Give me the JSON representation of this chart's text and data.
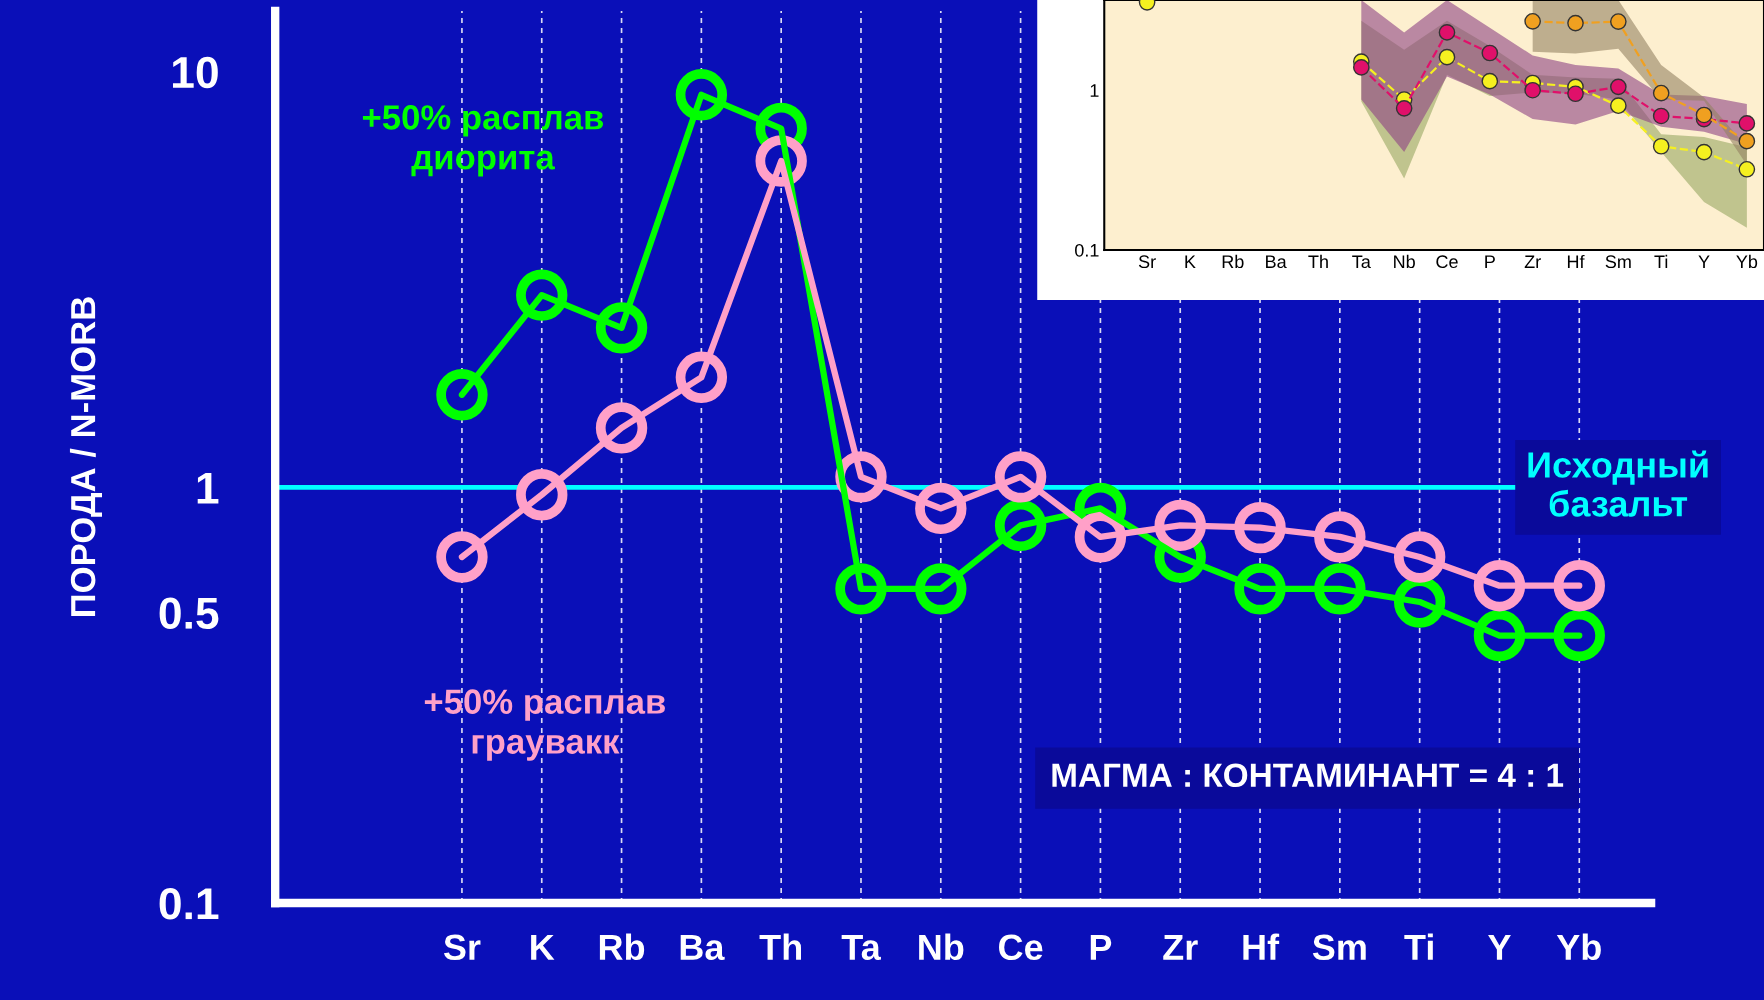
{
  "chart_data": [
    {
      "type": "line",
      "ylabel": "ПОРОДА / N-MORB",
      "categories": [
        "Sr",
        "K",
        "Rb",
        "Ba",
        "Th",
        "Ta",
        "Nb",
        "Ce",
        "P",
        "Zr",
        "Hf",
        "Sm",
        "Ti",
        "Y",
        "Yb"
      ],
      "series": [
        {
          "name": "+50% расплав диорита",
          "color": "#00ff00",
          "values": [
            1.67,
            2.9,
            2.42,
            8.8,
            7.3,
            0.57,
            0.57,
            0.81,
            0.89,
            0.68,
            0.57,
            0.57,
            0.53,
            0.44,
            0.44
          ]
        },
        {
          "name": "+50% расплав граувакк",
          "color": "#ffa0c8",
          "values": [
            0.68,
            0.96,
            1.39,
            1.84,
            6.1,
            1.06,
            0.89,
            1.06,
            0.76,
            0.81,
            0.8,
            0.76,
            0.68,
            0.58,
            0.58
          ]
        }
      ],
      "log": "y",
      "ylim": [
        0.1,
        14
      ],
      "yticks": [
        0.1,
        0.5,
        1,
        10
      ],
      "grid": "x",
      "marker": "circle",
      "line_style": "solid",
      "ref_lines": [
        {
          "axis": "y",
          "value": 1,
          "label": "Исходный базальт",
          "color": "#00ffff"
        }
      ],
      "annotations": [
        "МАГМА : КОНТАМИНАНТ = 4 : 1"
      ]
    },
    {
      "type": "line",
      "categories": [
        "Sr",
        "K",
        "Rb",
        "Ba",
        "Th",
        "Ta",
        "Nb",
        "Ce",
        "P",
        "Zr",
        "Hf",
        "Sm",
        "Ti",
        "Y",
        "Yb"
      ],
      "series": [
        {
          "color": "#f5f020",
          "values": [
            3.55,
            null,
            null,
            null,
            null,
            1.51,
            0.875,
            1.61,
            1.14,
            1.11,
            1.05,
            0.8,
            0.446,
            0.41,
            0.32
          ],
          "lower": [
            null,
            null,
            null,
            null,
            null,
            0.85,
            0.28,
            1.25,
            0.92,
            0.97,
            0.95,
            0.875,
            0.41,
            0.2,
            0.138
          ],
          "upper": [
            null,
            null,
            null,
            null,
            null,
            2.72,
            1.79,
            2.72,
            1.89,
            1.25,
            1.2,
            1.18,
            0.53,
            0.51,
            0.44
          ]
        },
        {
          "color": "#e0106a",
          "values": [
            null,
            null,
            null,
            null,
            null,
            1.39,
            0.77,
            2.3,
            1.71,
            1.0,
            0.95,
            1.05,
            0.69,
            0.66,
            0.62
          ],
          "lower": [
            null,
            null,
            null,
            null,
            null,
            0.875,
            0.41,
            1.22,
            0.94,
            0.66,
            0.61,
            0.74,
            0.59,
            0.55,
            0.46
          ],
          "upper": [
            null,
            null,
            null,
            null,
            null,
            3.67,
            2.3,
            3.67,
            2.46,
            1.65,
            1.44,
            1.37,
            0.94,
            0.92,
            0.82
          ]
        },
        {
          "color": "#f0a020",
          "values": [
            null,
            null,
            null,
            null,
            null,
            null,
            null,
            null,
            null,
            2.7,
            2.63,
            2.69,
            0.96,
            0.7,
            0.48
          ],
          "lower": [
            null,
            null,
            null,
            null,
            null,
            null,
            null,
            null,
            null,
            1.74,
            1.7,
            1.82,
            0.875,
            0.86,
            0.34
          ],
          "upper": [
            null,
            null,
            null,
            null,
            null,
            null,
            null,
            null,
            null,
            3.67,
            3.67,
            3.67,
            1.44,
            0.9,
            0.44
          ]
        }
      ],
      "log": "y",
      "ylim": [
        0.1,
        3.67
      ],
      "yticks": [
        0.1,
        1
      ],
      "marker": "circle",
      "line_style": "dashed"
    }
  ]
}
